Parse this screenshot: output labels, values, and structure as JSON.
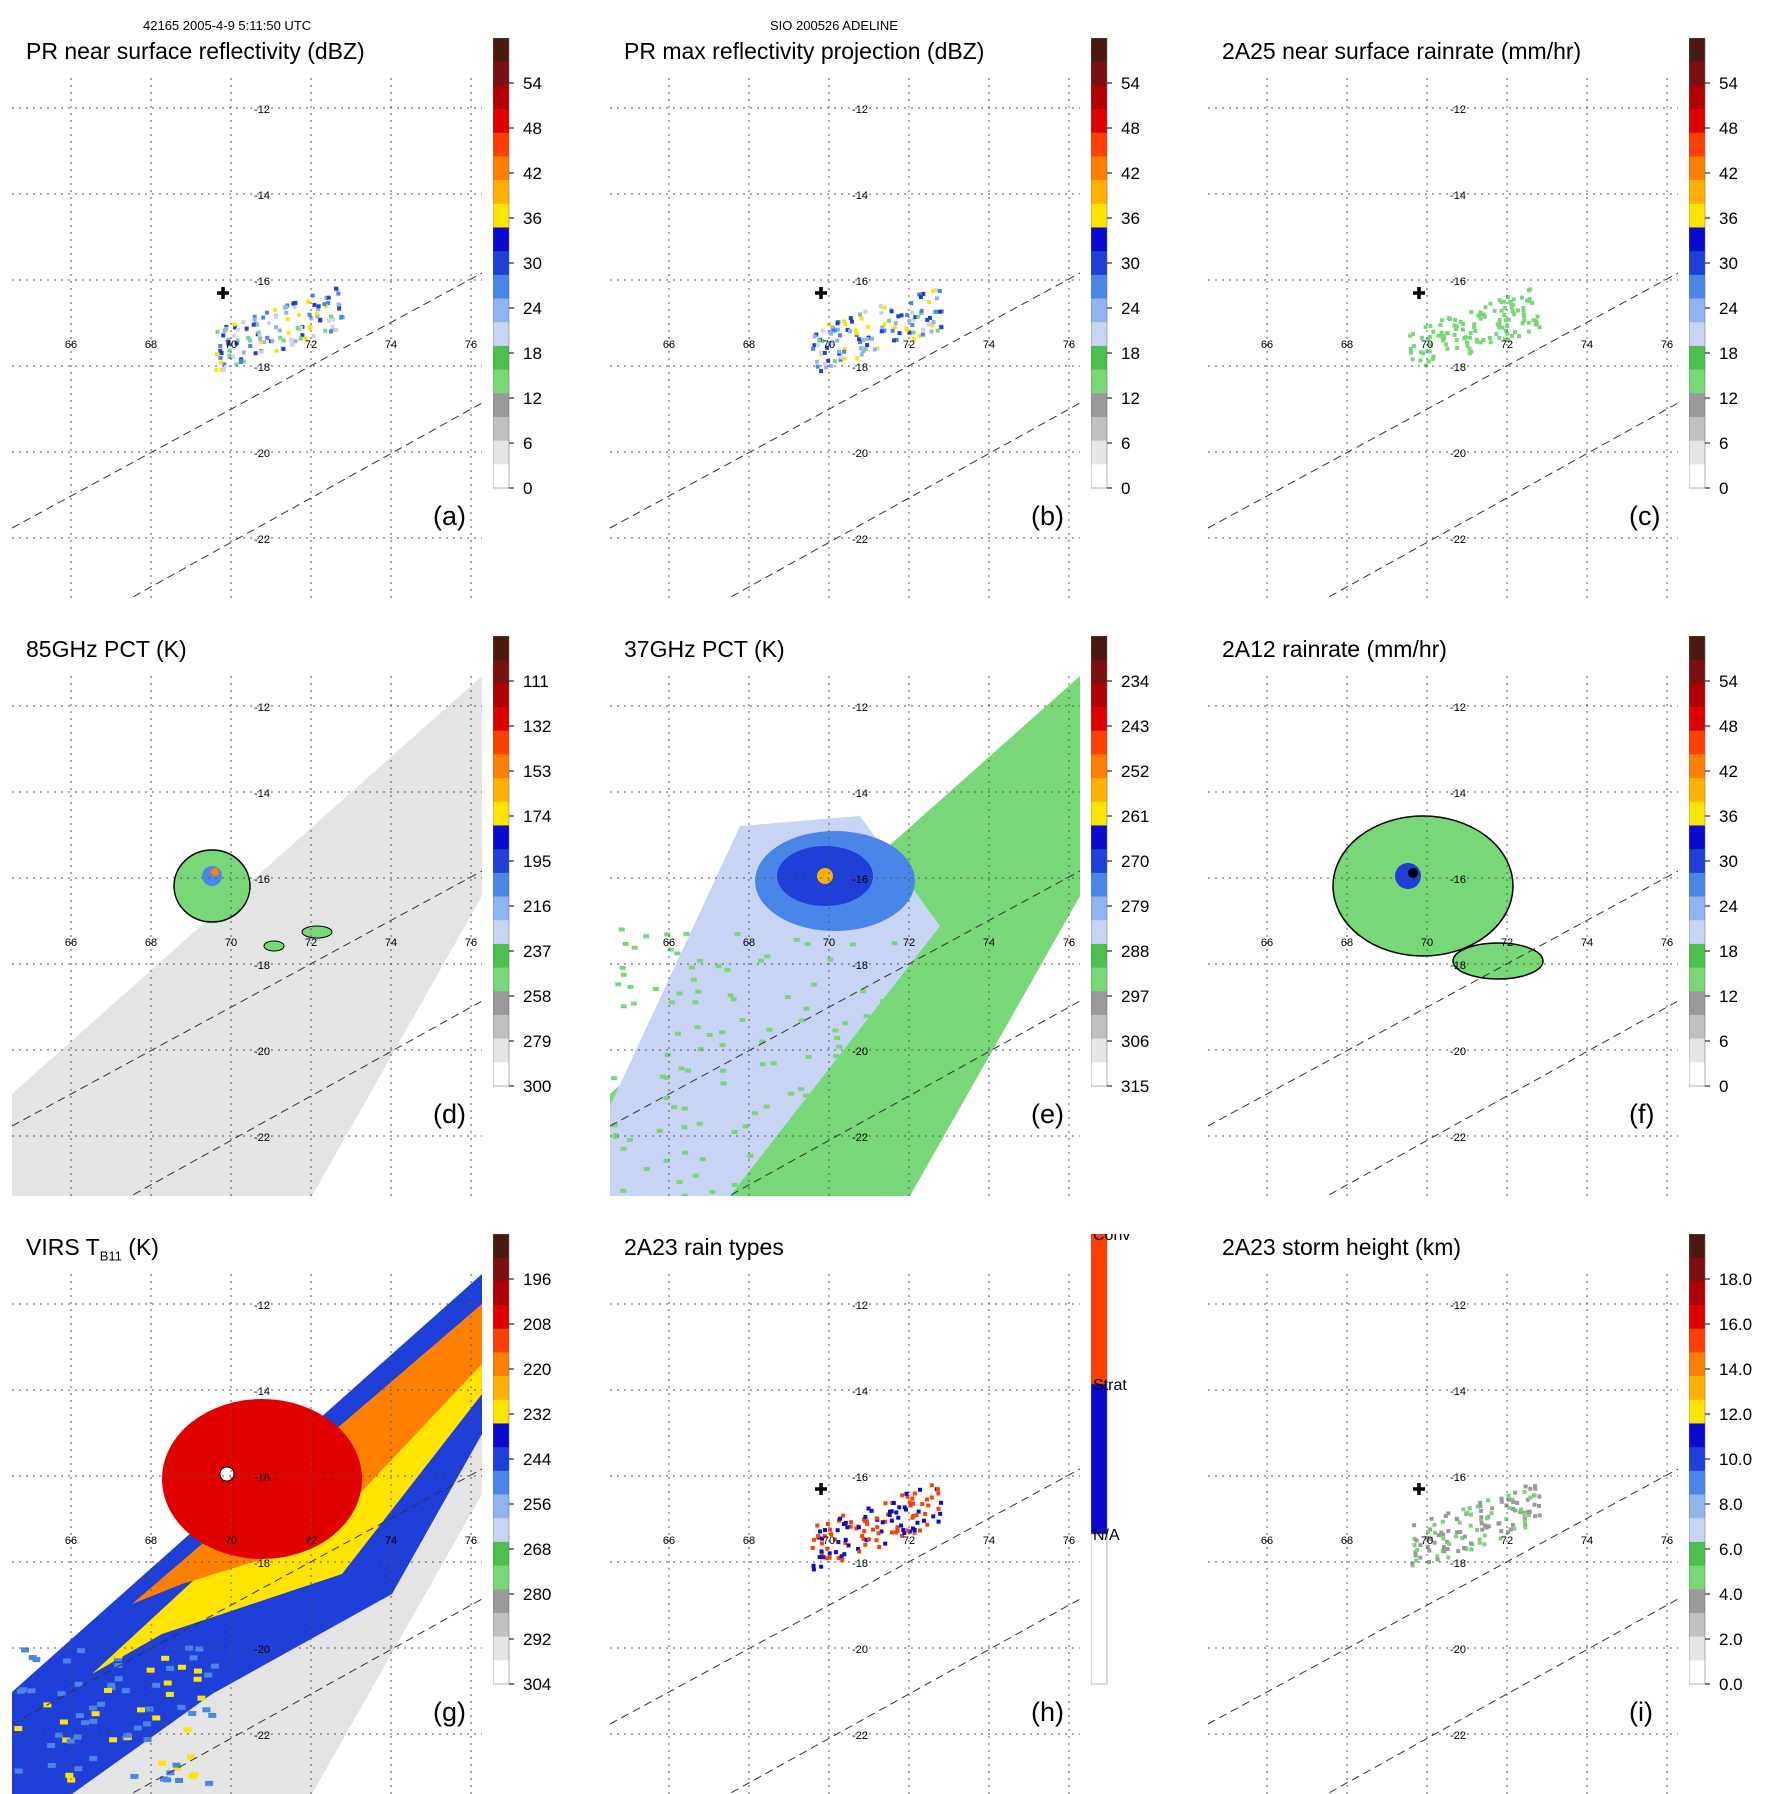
{
  "header": {
    "left": "42165 2005-4-9 5:11:50 UTC",
    "center": "SIO 200526 ADELINE"
  },
  "grid": {
    "lon_labels": [
      "66",
      "68",
      "70",
      "72",
      "74",
      "76"
    ],
    "lat_labels": [
      "-12",
      "-14",
      "-16",
      "-18",
      "-20",
      "-22"
    ]
  },
  "panels": [
    {
      "id": "a",
      "title": "PR near surface reflectivity (dBZ)",
      "label": "(a)",
      "colorbar": {
        "ticks": [
          "54",
          "48",
          "42",
          "36",
          "30",
          "24",
          "18",
          "12",
          "6",
          "0"
        ]
      }
    },
    {
      "id": "b",
      "title": "PR max reflectivity projection (dBZ)",
      "label": "(b)",
      "colorbar": {
        "ticks": [
          "54",
          "48",
          "42",
          "36",
          "30",
          "24",
          "18",
          "12",
          "6",
          "0"
        ]
      }
    },
    {
      "id": "c",
      "title": "2A25 near surface rainrate (mm/hr)",
      "label": "(c)",
      "colorbar": {
        "ticks": [
          "54",
          "48",
          "42",
          "36",
          "30",
          "24",
          "18",
          "12",
          "6",
          "0"
        ]
      }
    },
    {
      "id": "d",
      "title": "85GHz PCT (K)",
      "label": "(d)",
      "colorbar": {
        "ticks": [
          "111",
          "132",
          "153",
          "174",
          "195",
          "216",
          "237",
          "258",
          "279",
          "300"
        ]
      }
    },
    {
      "id": "e",
      "title": "37GHz PCT (K)",
      "label": "(e)",
      "colorbar": {
        "ticks": [
          "234",
          "243",
          "252",
          "261",
          "270",
          "279",
          "288",
          "297",
          "306",
          "315"
        ]
      }
    },
    {
      "id": "f",
      "title": "2A12 rainrate (mm/hr)",
      "label": "(f)",
      "colorbar": {
        "ticks": [
          "54",
          "48",
          "42",
          "36",
          "30",
          "24",
          "18",
          "12",
          "6",
          "0"
        ]
      }
    },
    {
      "id": "g",
      "title_main": "VIRS T",
      "title_sub": "B11",
      "title_unit": " (K)",
      "label": "(g)",
      "colorbar": {
        "ticks": [
          "196",
          "208",
          "220",
          "232",
          "244",
          "256",
          "268",
          "280",
          "292",
          "304"
        ]
      }
    },
    {
      "id": "h",
      "title": "2A23 rain types",
      "label": "(h)",
      "colorbar": {
        "ticks": [
          "Conv",
          "Strat",
          "N/A"
        ]
      }
    },
    {
      "id": "i",
      "title": "2A23 storm height (km)",
      "label": "(i)",
      "colorbar": {
        "ticks": [
          "18.0",
          "16.0",
          "14.0",
          "12.0",
          "10.0",
          "8.0",
          "6.0",
          "4.0",
          "2.0",
          "0.0"
        ]
      }
    }
  ],
  "colors": {
    "scale": [
      "#ffffff",
      "#e6e6e6",
      "#c0c0c0",
      "#9a9a9a",
      "#78d878",
      "#4cbf4c",
      "#c8d4f4",
      "#8fb4f0",
      "#4a86e8",
      "#1e3fd8",
      "#0a0ad0",
      "#ffe400",
      "#ffb000",
      "#ff8000",
      "#ff4000",
      "#e00000",
      "#b00000",
      "#7a1010",
      "#4a1a10"
    ],
    "conv": "#ff4000",
    "strat": "#0a0ad0"
  }
}
